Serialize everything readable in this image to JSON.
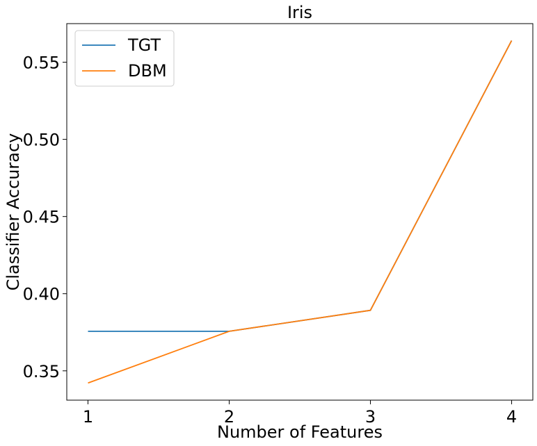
{
  "chart_data": {
    "type": "line",
    "title": "Iris",
    "xlabel": "Number of Features",
    "ylabel": "Classifier Accuracy",
    "x": [
      1,
      2,
      3,
      4
    ],
    "xticks": [
      "1",
      "2",
      "3",
      "4"
    ],
    "yticks": [
      "0.35",
      "0.40",
      "0.45",
      "0.50",
      "0.55"
    ],
    "xlim": [
      0.85,
      4.15
    ],
    "ylim": [
      0.331,
      0.575
    ],
    "grid": false,
    "legend_position": "top-left",
    "series": [
      {
        "name": "TGT",
        "color": "#1f77b4",
        "values": [
          0.3756,
          0.3756,
          0.3892,
          0.564
        ]
      },
      {
        "name": "DBM",
        "color": "#ff7f0e",
        "values": [
          0.3421,
          0.3756,
          0.3892,
          0.564
        ]
      }
    ]
  }
}
